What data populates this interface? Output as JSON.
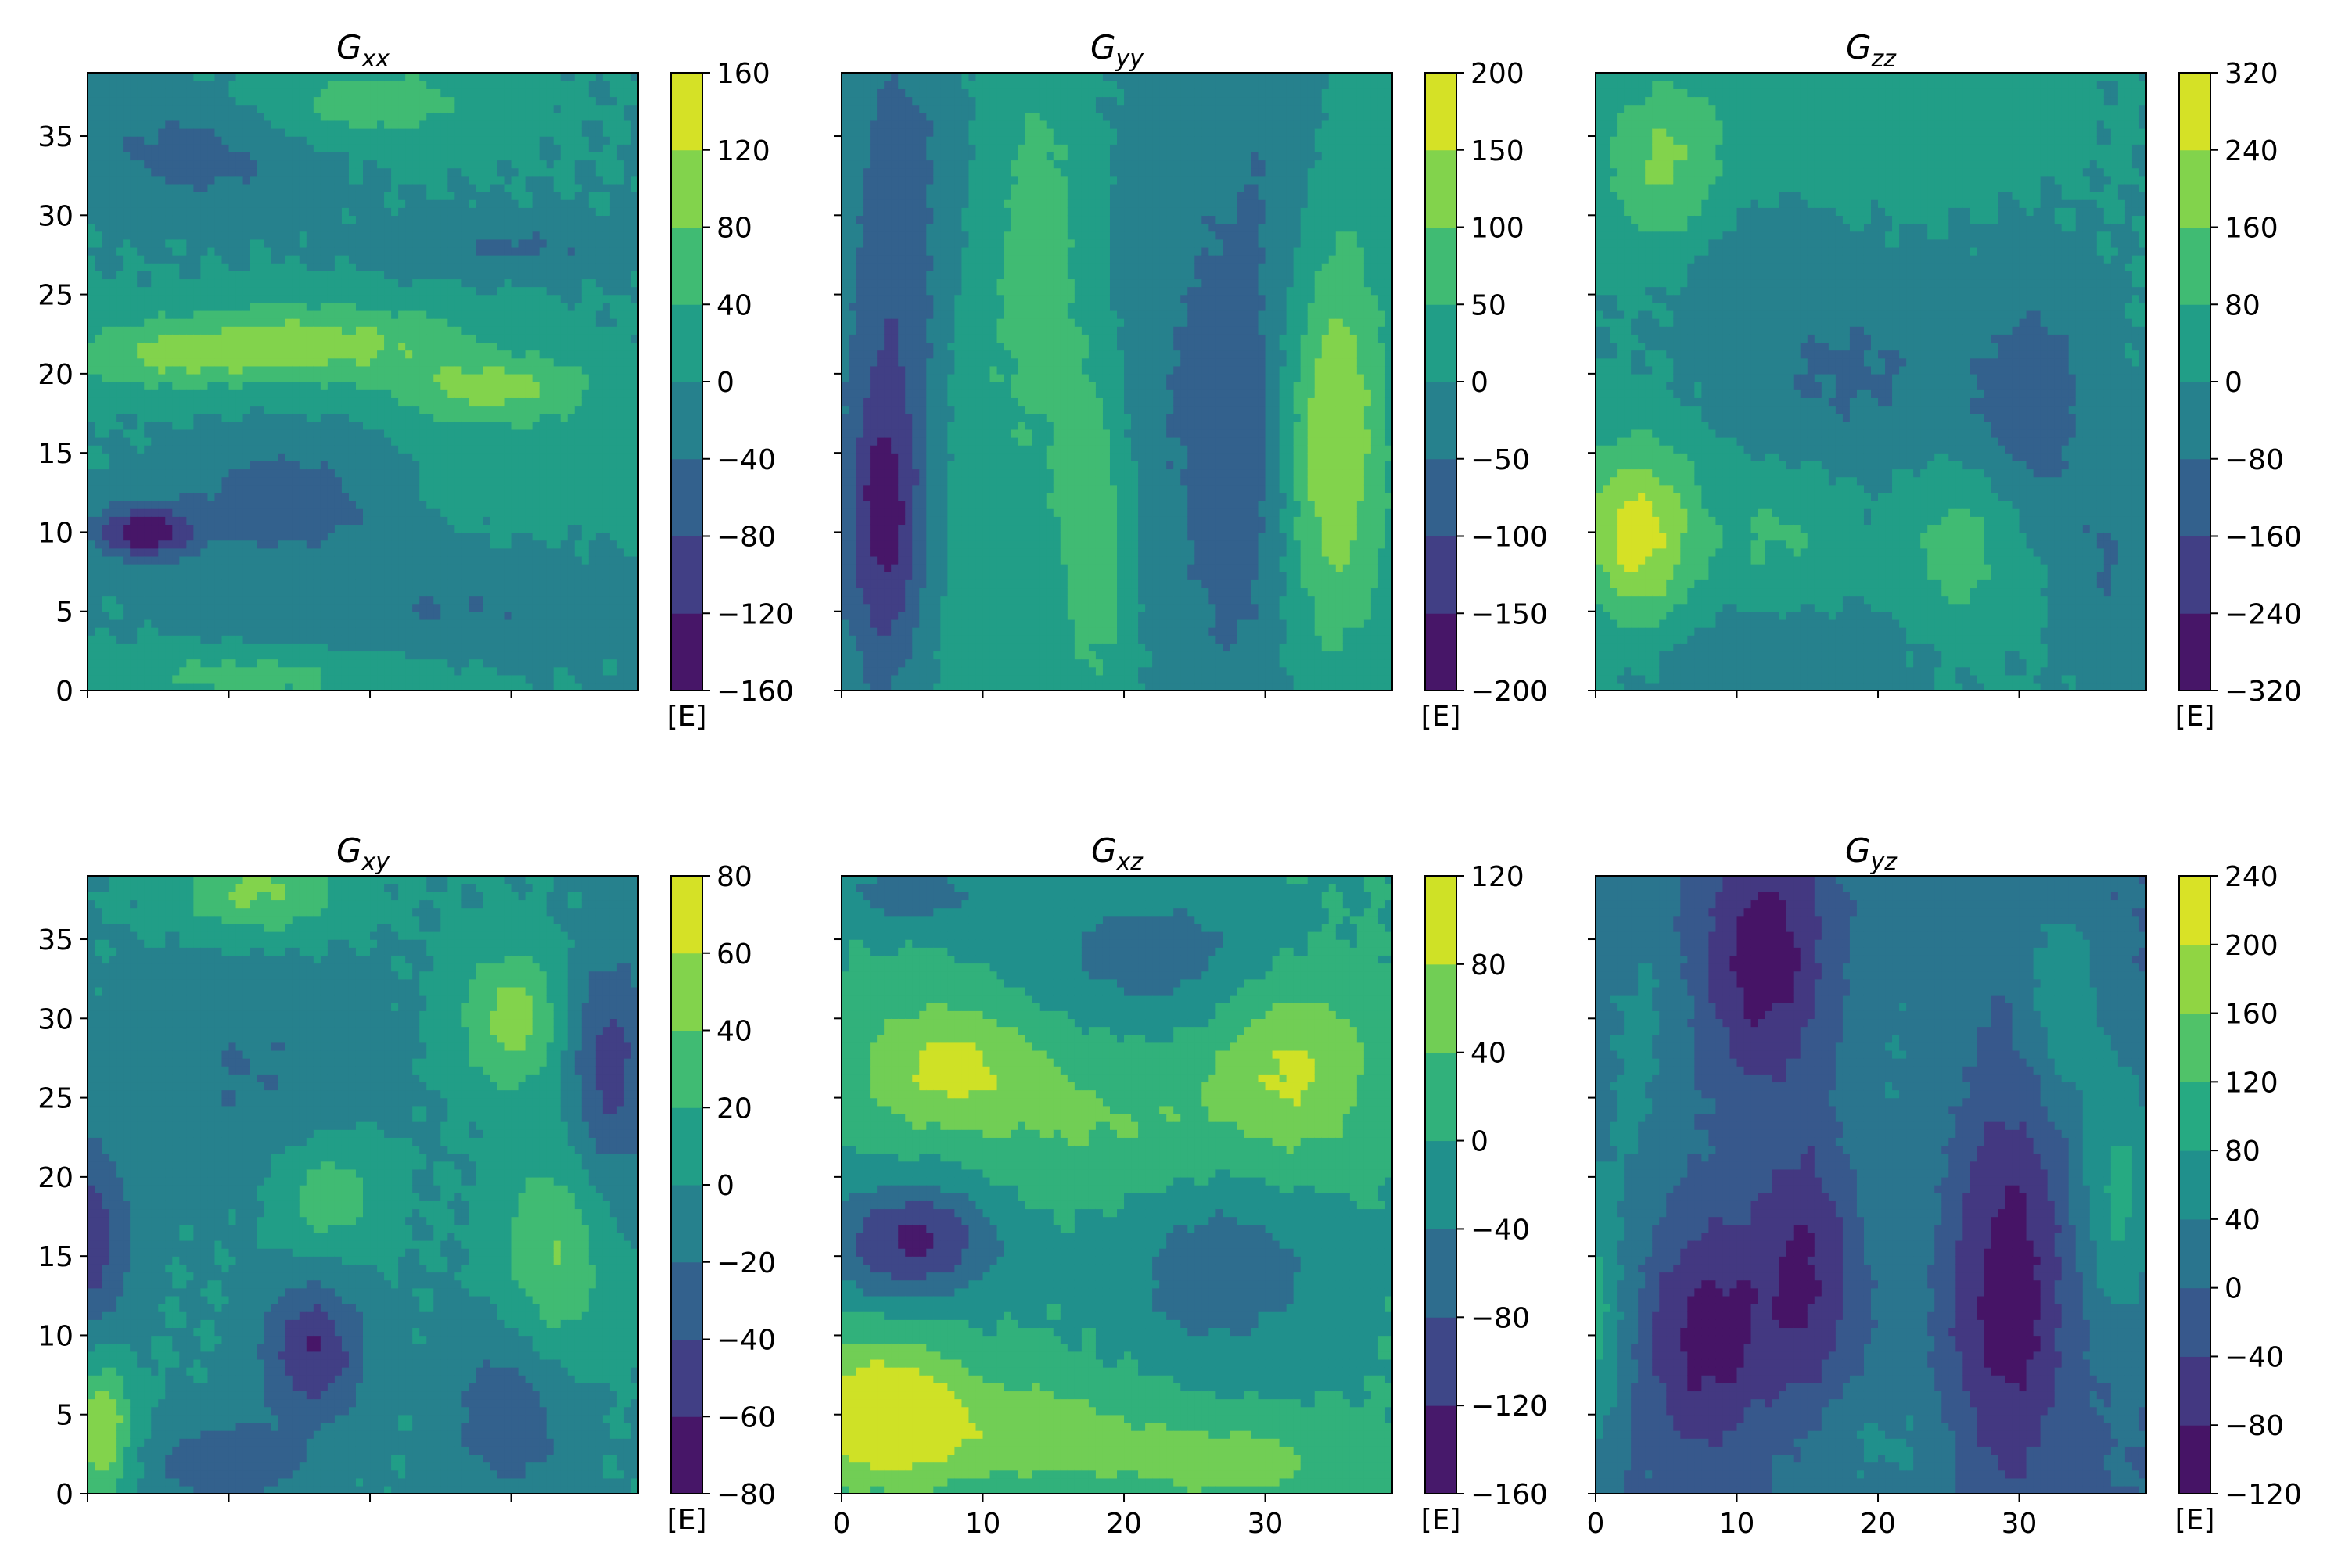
{
  "chart_data": [
    {
      "type": "heatmap",
      "title": "G",
      "title_subscript": "xx",
      "colorbar_ticks": [
        "160",
        "120",
        "80",
        "40",
        "0",
        "−40",
        "−80",
        "−120",
        "−160"
      ],
      "colorbar_unit": "[E]",
      "y_ticks": [
        "0",
        "5",
        "10",
        "15",
        "20",
        "25",
        "30",
        "35"
      ],
      "x_ticks": [],
      "xlim": [
        0,
        39
      ],
      "ylim": [
        0,
        39
      ],
      "vmin": -160,
      "vmax": 160,
      "levels": 8,
      "features": [
        {
          "x": 4,
          "y": 10,
          "sx": 2.5,
          "sy": 1.2,
          "a": -150
        },
        {
          "x": 14,
          "y": 12,
          "sx": 5,
          "sy": 2.5,
          "a": -70
        },
        {
          "x": 16,
          "y": 22,
          "sx": 8,
          "sy": 1.8,
          "a": 95
        },
        {
          "x": 29,
          "y": 19,
          "sx": 5,
          "sy": 1.5,
          "a": 90
        },
        {
          "x": 5,
          "y": 21,
          "sx": 5,
          "sy": 1.5,
          "a": 60
        },
        {
          "x": 20,
          "y": 37,
          "sx": 6,
          "sy": 2,
          "a": 60
        },
        {
          "x": 30,
          "y": 28,
          "sx": 6,
          "sy": 1.2,
          "a": -45
        },
        {
          "x": 8,
          "y": 34,
          "sx": 6,
          "sy": 2.5,
          "a": -55
        },
        {
          "x": 12,
          "y": 1,
          "sx": 8,
          "sy": 1.2,
          "a": 55
        },
        {
          "x": 25,
          "y": 5,
          "sx": 10,
          "sy": 2,
          "a": -40
        },
        {
          "x": 32,
          "y": 14,
          "sx": 6,
          "sy": 2,
          "a": 30
        }
      ]
    },
    {
      "type": "heatmap",
      "title": "G",
      "title_subscript": "yy",
      "colorbar_ticks": [
        "200",
        "150",
        "100",
        "50",
        "0",
        "−50",
        "−100",
        "−150",
        "−200"
      ],
      "colorbar_unit": "[E]",
      "y_ticks": [],
      "x_ticks": [],
      "xlim": [
        0,
        39
      ],
      "ylim": [
        0,
        39
      ],
      "vmin": -200,
      "vmax": 200,
      "levels": 8,
      "features": [
        {
          "x": 3,
          "y": 11,
          "sx": 2,
          "sy": 7,
          "a": -170
        },
        {
          "x": 4,
          "y": 30,
          "sx": 2.5,
          "sy": 9,
          "a": -80
        },
        {
          "x": 14,
          "y": 28,
          "sx": 2.5,
          "sy": 10,
          "a": 70
        },
        {
          "x": 10,
          "y": 10,
          "sx": 2,
          "sy": 10,
          "a": 40
        },
        {
          "x": 35,
          "y": 16,
          "sx": 2.5,
          "sy": 9,
          "a": 150
        },
        {
          "x": 28,
          "y": 14,
          "sx": 2.5,
          "sy": 10,
          "a": -90
        },
        {
          "x": 22,
          "y": 20,
          "sx": 2.5,
          "sy": 12,
          "a": -40
        },
        {
          "x": 18,
          "y": 10,
          "sx": 2,
          "sy": 8,
          "a": 90
        },
        {
          "x": 31,
          "y": 32,
          "sx": 4,
          "sy": 7,
          "a": -40
        },
        {
          "x": 36,
          "y": 33,
          "sx": 2.5,
          "sy": 6,
          "a": 20
        }
      ]
    },
    {
      "type": "heatmap",
      "title": "G",
      "title_subscript": "zz",
      "colorbar_ticks": [
        "320",
        "240",
        "160",
        "80",
        "0",
        "−80",
        "−160",
        "−240",
        "−320"
      ],
      "colorbar_unit": "[E]",
      "y_ticks": [],
      "x_ticks": [],
      "xlim": [
        0,
        39
      ],
      "ylim": [
        0,
        39
      ],
      "vmin": -320,
      "vmax": 320,
      "levels": 8,
      "features": [
        {
          "x": 3,
          "y": 10,
          "sx": 3,
          "sy": 4,
          "a": 280
        },
        {
          "x": 5,
          "y": 33,
          "sx": 3,
          "sy": 4,
          "a": 170
        },
        {
          "x": 13,
          "y": 10,
          "sx": 3,
          "sy": 3,
          "a": 90
        },
        {
          "x": 26,
          "y": 9,
          "sx": 3,
          "sy": 3.5,
          "a": 120
        },
        {
          "x": 31,
          "y": 18,
          "sx": 3,
          "sy": 5,
          "a": -130
        },
        {
          "x": 18,
          "y": 20,
          "sx": 6,
          "sy": 4,
          "a": -90
        },
        {
          "x": 36,
          "y": 8,
          "sx": 2,
          "sy": 4,
          "a": -80
        },
        {
          "x": 20,
          "y": 36,
          "sx": 8,
          "sy": 3,
          "a": 60
        },
        {
          "x": 12,
          "y": 2,
          "sx": 6,
          "sy": 2,
          "a": -70
        },
        {
          "x": 10,
          "y": 27,
          "sx": 4,
          "sy": 3,
          "a": -50
        }
      ]
    },
    {
      "type": "heatmap",
      "title": "G",
      "title_subscript": "xy",
      "colorbar_ticks": [
        "80",
        "60",
        "40",
        "20",
        "0",
        "−20",
        "−40",
        "−60",
        "−80"
      ],
      "colorbar_unit": "[E]",
      "y_ticks": [
        "0",
        "5",
        "10",
        "15",
        "20",
        "25",
        "30",
        "35"
      ],
      "x_ticks": [],
      "xlim": [
        0,
        39
      ],
      "ylim": [
        0,
        39
      ],
      "vmin": -80,
      "vmax": 80,
      "levels": 8,
      "features": [
        {
          "x": 16,
          "y": 9,
          "sx": 2.5,
          "sy": 3,
          "a": -60
        },
        {
          "x": 1,
          "y": 4,
          "sx": 1.5,
          "sy": 3,
          "a": 60
        },
        {
          "x": 30,
          "y": 30,
          "sx": 2.5,
          "sy": 3,
          "a": 50
        },
        {
          "x": 33,
          "y": 15,
          "sx": 2.5,
          "sy": 5,
          "a": 40
        },
        {
          "x": 17,
          "y": 19,
          "sx": 2.5,
          "sy": 2.5,
          "a": 35
        },
        {
          "x": 12,
          "y": 38,
          "sx": 4,
          "sy": 2,
          "a": 45
        },
        {
          "x": 37,
          "y": 27,
          "sx": 2,
          "sy": 5,
          "a": -50
        },
        {
          "x": 0,
          "y": 16,
          "sx": 2,
          "sy": 4,
          "a": -55
        },
        {
          "x": 11,
          "y": 27,
          "sx": 6,
          "sy": 5,
          "a": -20
        },
        {
          "x": 30,
          "y": 5,
          "sx": 3,
          "sy": 4,
          "a": -35
        },
        {
          "x": 10,
          "y": 2,
          "sx": 4,
          "sy": 2,
          "a": -35
        }
      ]
    },
    {
      "type": "heatmap",
      "title": "G",
      "title_subscript": "xz",
      "colorbar_ticks": [
        "120",
        "80",
        "40",
        "0",
        "−40",
        "−80",
        "−120",
        "−160"
      ],
      "colorbar_unit": "[E]",
      "y_ticks": [],
      "x_ticks": [
        "0",
        "10",
        "20",
        "30"
      ],
      "xlim": [
        0,
        39
      ],
      "ylim": [
        0,
        39
      ],
      "vmin": -160,
      "vmax": 120,
      "levels": 7,
      "features": [
        {
          "x": 3,
          "y": 5,
          "sx": 4,
          "sy": 3,
          "a": 140
        },
        {
          "x": 5,
          "y": 16,
          "sx": 4,
          "sy": 2.5,
          "a": -130
        },
        {
          "x": 8,
          "y": 27,
          "sx": 5,
          "sy": 3,
          "a": 90
        },
        {
          "x": 32,
          "y": 27,
          "sx": 4,
          "sy": 4,
          "a": 85
        },
        {
          "x": 27,
          "y": 14,
          "sx": 5,
          "sy": 4,
          "a": -65
        },
        {
          "x": 22,
          "y": 34,
          "sx": 6,
          "sy": 3,
          "a": -60
        },
        {
          "x": 14,
          "y": 4,
          "sx": 6,
          "sy": 2.5,
          "a": 60
        },
        {
          "x": 28,
          "y": 2,
          "sx": 6,
          "sy": 2,
          "a": 55
        },
        {
          "x": 5,
          "y": 38,
          "sx": 4,
          "sy": 1.5,
          "a": -60
        },
        {
          "x": 20,
          "y": 23,
          "sx": 6,
          "sy": 3,
          "a": 40
        }
      ]
    },
    {
      "type": "heatmap",
      "title": "G",
      "title_subscript": "yz",
      "colorbar_ticks": [
        "240",
        "200",
        "160",
        "120",
        "80",
        "40",
        "0",
        "−40",
        "−80",
        "−120"
      ],
      "colorbar_unit": "[E]",
      "y_ticks": [],
      "x_ticks": [
        "0",
        "10",
        "20",
        "30"
      ],
      "xlim": [
        0,
        39
      ],
      "ylim": [
        0,
        39
      ],
      "vmin": -120,
      "vmax": 240,
      "levels": 9,
      "features": [
        {
          "x": 12,
          "y": 34,
          "sx": 3,
          "sy": 5,
          "a": -110
        },
        {
          "x": 15,
          "y": 14,
          "sx": 2.5,
          "sy": 6,
          "a": -90
        },
        {
          "x": 8,
          "y": 10,
          "sx": 3,
          "sy": 5,
          "a": -100
        },
        {
          "x": 29,
          "y": 13,
          "sx": 3,
          "sy": 9,
          "a": -110
        },
        {
          "x": 0,
          "y": 11,
          "sx": 1.5,
          "sy": 6,
          "a": 90
        },
        {
          "x": 37,
          "y": 19,
          "sx": 2,
          "sy": 6,
          "a": 90
        },
        {
          "x": 3,
          "y": 28,
          "sx": 2.5,
          "sy": 8,
          "a": 50
        },
        {
          "x": 22,
          "y": 25,
          "sx": 4,
          "sy": 12,
          "a": 40
        },
        {
          "x": 33,
          "y": 31,
          "sx": 2,
          "sy": 5,
          "a": 70
        },
        {
          "x": 20,
          "y": 3,
          "sx": 5,
          "sy": 3,
          "a": 40
        }
      ]
    }
  ]
}
